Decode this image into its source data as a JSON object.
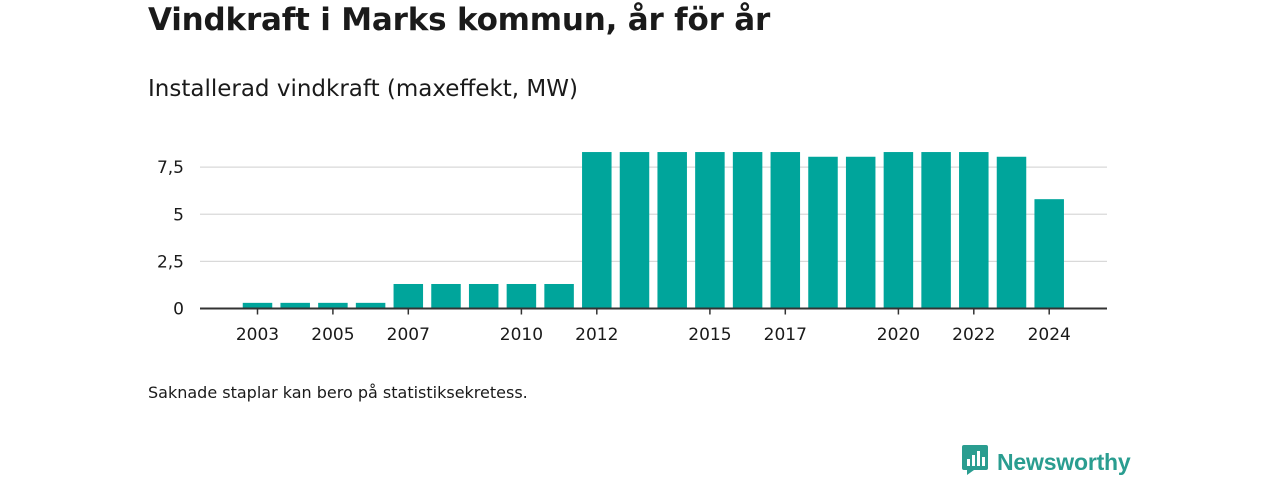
{
  "header": {
    "title": "Vindkraft i Marks kommun, år för år",
    "subtitle": "Installerad vindkraft (maxeffekt, MW)"
  },
  "footer": {
    "note": "Saknade staplar kan bero på statistiksekretess.",
    "brand": "Newsworthy"
  },
  "colors": {
    "bar": "#00a59b",
    "grid": "#d9d9d9",
    "axis": "#333333",
    "brand": "#2a9d90"
  },
  "chart_data": {
    "type": "bar",
    "title": "Vindkraft i Marks kommun, år för år",
    "subtitle": "Installerad vindkraft (maxeffekt, MW)",
    "xlabel": "",
    "ylabel": "",
    "categories": [
      2003,
      2004,
      2005,
      2006,
      2007,
      2008,
      2009,
      2010,
      2011,
      2012,
      2013,
      2014,
      2015,
      2016,
      2017,
      2018,
      2019,
      2020,
      2021,
      2022,
      2023,
      2024
    ],
    "values": [
      0.3,
      0.3,
      0.3,
      0.3,
      1.3,
      1.3,
      1.3,
      1.3,
      1.3,
      8.3,
      8.3,
      8.3,
      8.3,
      8.3,
      8.3,
      8.05,
      8.05,
      8.3,
      8.3,
      8.3,
      8.05,
      5.8
    ],
    "x_tick_labels": [
      "2003",
      "2005",
      "2007",
      "2010",
      "2012",
      "2015",
      "2017",
      "2020",
      "2022",
      "2024"
    ],
    "y_ticks": [
      0,
      2.5,
      5,
      7.5
    ],
    "y_tick_labels": [
      "0",
      "2,5",
      "5",
      "7,5"
    ],
    "ylim": [
      0,
      9
    ],
    "grid": true,
    "legend": "none"
  }
}
